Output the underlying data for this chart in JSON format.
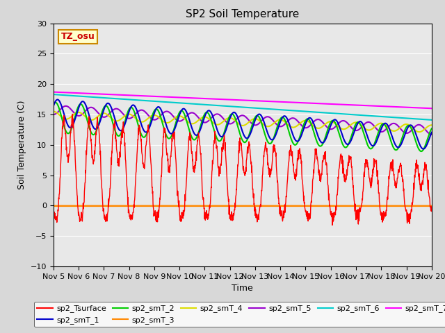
{
  "title": "SP2 Soil Temperature",
  "ylabel": "Soil Temperature (C)",
  "xlabel": "Time",
  "ylim": [
    -10,
    30
  ],
  "xlim": [
    0,
    360
  ],
  "xtick_labels": [
    "Nov 5",
    "Nov 6",
    "Nov 7",
    "Nov 8",
    "Nov 9",
    "Nov 10",
    "Nov 11",
    "Nov 12",
    "Nov 13",
    "Nov 14",
    "Nov 15",
    "Nov 16",
    "Nov 17",
    "Nov 18",
    "Nov 19",
    "Nov 20"
  ],
  "xtick_positions": [
    0,
    24,
    48,
    72,
    96,
    120,
    144,
    168,
    192,
    216,
    240,
    264,
    288,
    312,
    336,
    360
  ],
  "annotation_text": "TZ_osu",
  "legend_entries": [
    "sp2_Tsurface",
    "sp2_smT_1",
    "sp2_smT_2",
    "sp2_smT_3",
    "sp2_smT_4",
    "sp2_smT_5",
    "sp2_smT_6",
    "sp2_smT_7"
  ],
  "line_colors": [
    "#ff0000",
    "#0000cc",
    "#00cc00",
    "#ff8800",
    "#dddd00",
    "#9900cc",
    "#00cccc",
    "#ff00ff"
  ],
  "background_color": "#e8e8e8",
  "title_fontsize": 11,
  "label_fontsize": 9,
  "tick_fontsize": 8
}
